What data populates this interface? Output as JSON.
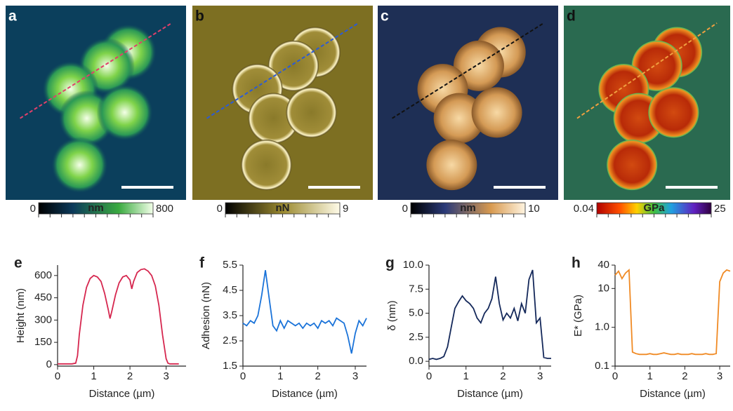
{
  "image_panels": [
    {
      "label": "a",
      "colorbar": {
        "min": 0,
        "max": 800,
        "unit": "nm"
      }
    },
    {
      "label": "b",
      "colorbar": {
        "min": 0,
        "max": 9,
        "unit": "nN"
      }
    },
    {
      "label": "c",
      "colorbar": {
        "min": 0,
        "max": 10,
        "unit": "nm"
      }
    },
    {
      "label": "d",
      "colorbar": {
        "min": 0.04,
        "max": 25,
        "unit": "GPa"
      }
    }
  ],
  "chart_data": [
    {
      "type": "line",
      "panel_label": "e",
      "x_label": "Distance (µm)",
      "y_label": "Height (nm)",
      "xlim": [
        0,
        3.55
      ],
      "xticks": [
        0,
        1,
        2,
        3
      ],
      "ylim": [
        -10,
        670
      ],
      "yticks": [
        0,
        150,
        300,
        450,
        600
      ],
      "series": [
        {
          "color": "#d6274f",
          "x": [
            0,
            0.2,
            0.4,
            0.5,
            0.55,
            0.6,
            0.7,
            0.8,
            0.9,
            1.0,
            1.1,
            1.2,
            1.3,
            1.4,
            1.45,
            1.5,
            1.6,
            1.7,
            1.8,
            1.9,
            2.0,
            2.05,
            2.1,
            2.2,
            2.3,
            2.4,
            2.5,
            2.6,
            2.7,
            2.8,
            2.9,
            3.0,
            3.05,
            3.1,
            3.2,
            3.35
          ],
          "values": [
            5,
            5,
            5,
            10,
            60,
            200,
            400,
            520,
            580,
            600,
            590,
            560,
            480,
            370,
            310,
            360,
            470,
            550,
            590,
            600,
            570,
            510,
            560,
            620,
            640,
            645,
            630,
            600,
            530,
            400,
            200,
            40,
            10,
            5,
            5,
            5
          ]
        }
      ]
    },
    {
      "type": "line",
      "panel_label": "f",
      "x_label": "Distance (µm)",
      "y_label": "Adhesion (nN)",
      "xlim": [
        0,
        3.3
      ],
      "xticks": [
        0,
        1,
        2,
        3
      ],
      "ylim": [
        1.5,
        5.5
      ],
      "yticks": [
        1.5,
        2.5,
        3.5,
        4.5,
        5.5
      ],
      "series": [
        {
          "color": "#1a73d9",
          "x": [
            0,
            0.1,
            0.2,
            0.3,
            0.4,
            0.5,
            0.6,
            0.7,
            0.8,
            0.9,
            1.0,
            1.1,
            1.2,
            1.3,
            1.4,
            1.5,
            1.6,
            1.7,
            1.8,
            1.9,
            2.0,
            2.1,
            2.2,
            2.3,
            2.4,
            2.5,
            2.6,
            2.7,
            2.8,
            2.9,
            3.0,
            3.1,
            3.2,
            3.3
          ],
          "values": [
            3.2,
            3.1,
            3.3,
            3.2,
            3.5,
            4.3,
            5.3,
            4.2,
            3.1,
            2.9,
            3.3,
            3.0,
            3.3,
            3.2,
            3.1,
            3.2,
            3.0,
            3.2,
            3.1,
            3.2,
            3.0,
            3.3,
            3.2,
            3.3,
            3.1,
            3.4,
            3.3,
            3.2,
            2.7,
            2.0,
            2.8,
            3.3,
            3.1,
            3.4
          ]
        }
      ]
    },
    {
      "type": "line",
      "panel_label": "g",
      "x_label": "Distance (µm)",
      "y_label": "δ (nm)",
      "xlim": [
        0,
        3.3
      ],
      "xticks": [
        0,
        1,
        2,
        3
      ],
      "ylim": [
        -0.5,
        10
      ],
      "yticks": [
        {
          "value": 0,
          "label": "0.0"
        },
        2.5,
        {
          "value": 5,
          "label": "5.0"
        },
        7.5,
        {
          "value": 10,
          "label": "10.0"
        }
      ],
      "series": [
        {
          "color": "#14285a",
          "x": [
            0,
            0.1,
            0.2,
            0.3,
            0.4,
            0.5,
            0.6,
            0.7,
            0.8,
            0.9,
            1.0,
            1.1,
            1.2,
            1.3,
            1.4,
            1.5,
            1.6,
            1.7,
            1.8,
            1.9,
            2.0,
            2.1,
            2.2,
            2.3,
            2.4,
            2.5,
            2.6,
            2.7,
            2.8,
            2.9,
            3.0,
            3.1,
            3.2,
            3.3
          ],
          "values": [
            0.2,
            0.3,
            0.2,
            0.3,
            0.5,
            1.5,
            3.5,
            5.5,
            6.2,
            6.8,
            6.3,
            6.0,
            5.5,
            4.5,
            4.0,
            5.0,
            5.5,
            6.5,
            8.8,
            6.0,
            4.3,
            5.0,
            4.5,
            5.5,
            4.2,
            6.0,
            5.0,
            8.5,
            9.5,
            4.0,
            4.5,
            0.4,
            0.3,
            0.3
          ]
        }
      ]
    },
    {
      "type": "line",
      "panel_label": "h",
      "x_label": "Distance (µm)",
      "y_label": "E* (GPa)",
      "log_y": true,
      "xlim": [
        0,
        3.3
      ],
      "xticks": [
        0,
        1,
        2,
        3
      ],
      "ylim": [
        0.1,
        40
      ],
      "yticks": [
        0.1,
        {
          "value": 1,
          "label": "1.0"
        },
        10,
        40
      ],
      "series": [
        {
          "color": "#f08a24",
          "x": [
            0,
            0.1,
            0.2,
            0.3,
            0.4,
            0.5,
            0.6,
            0.7,
            0.8,
            0.9,
            1.0,
            1.1,
            1.2,
            1.3,
            1.4,
            1.5,
            1.6,
            1.7,
            1.8,
            1.9,
            2.0,
            2.1,
            2.2,
            2.3,
            2.4,
            2.5,
            2.6,
            2.7,
            2.8,
            2.9,
            3.0,
            3.1,
            3.2,
            3.3
          ],
          "values": [
            22,
            28,
            18,
            25,
            30,
            0.23,
            0.21,
            0.2,
            0.2,
            0.2,
            0.21,
            0.2,
            0.2,
            0.21,
            0.22,
            0.21,
            0.2,
            0.2,
            0.21,
            0.2,
            0.2,
            0.2,
            0.21,
            0.2,
            0.2,
            0.2,
            0.21,
            0.2,
            0.2,
            0.21,
            15,
            25,
            30,
            28
          ]
        }
      ]
    }
  ]
}
